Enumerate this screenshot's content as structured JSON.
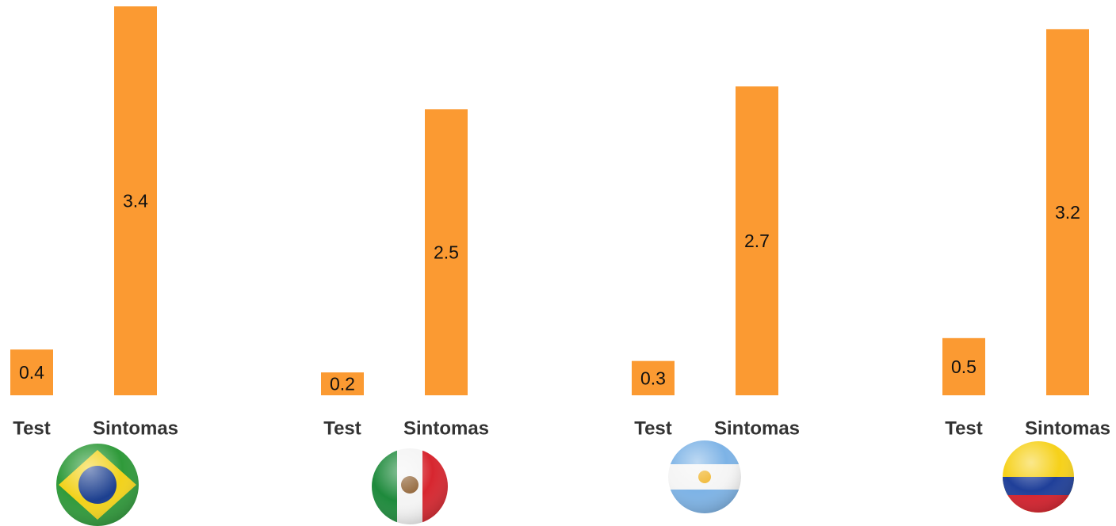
{
  "chart_data": [
    {
      "type": "bar",
      "categories": [
        "Test",
        "Sintomas"
      ],
      "values": [
        0.4,
        3.4
      ],
      "color": "#fb9a32"
    },
    {
      "type": "bar",
      "categories": [
        "Test",
        "Sintomas"
      ],
      "values": [
        0.2,
        2.5
      ],
      "color": "#fb9a32"
    },
    {
      "type": "bar",
      "categories": [
        "Test",
        "Sintomas"
      ],
      "values": [
        0.3,
        2.7
      ],
      "color": "#fb9a32"
    },
    {
      "type": "bar",
      "categories": [
        "Test",
        "Sintomas"
      ],
      "values": [
        0.5,
        3.2
      ],
      "color": "#fb9a32"
    }
  ]
}
